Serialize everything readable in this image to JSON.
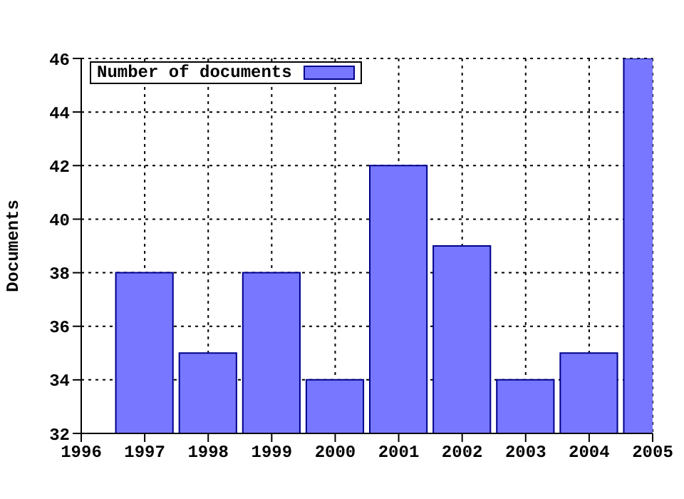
{
  "chart_data": {
    "type": "bar",
    "ylabel": "Documents",
    "x": [
      1997,
      1998,
      1999,
      2000,
      2001,
      2002,
      2003,
      2004,
      2005
    ],
    "series": [
      {
        "name": "Number of documents",
        "color": "#7777ff",
        "values": [
          38,
          35,
          38,
          34,
          42,
          39,
          34,
          35,
          46
        ]
      }
    ],
    "xlim": [
      1996,
      2005
    ],
    "xticks": [
      1996,
      1997,
      1998,
      1999,
      2000,
      2001,
      2002,
      2003,
      2004,
      2005
    ],
    "ylim": [
      32,
      46
    ],
    "yticks": [
      32,
      34,
      36,
      38,
      40,
      42,
      44,
      46
    ],
    "grid": true,
    "legend": "top left"
  }
}
